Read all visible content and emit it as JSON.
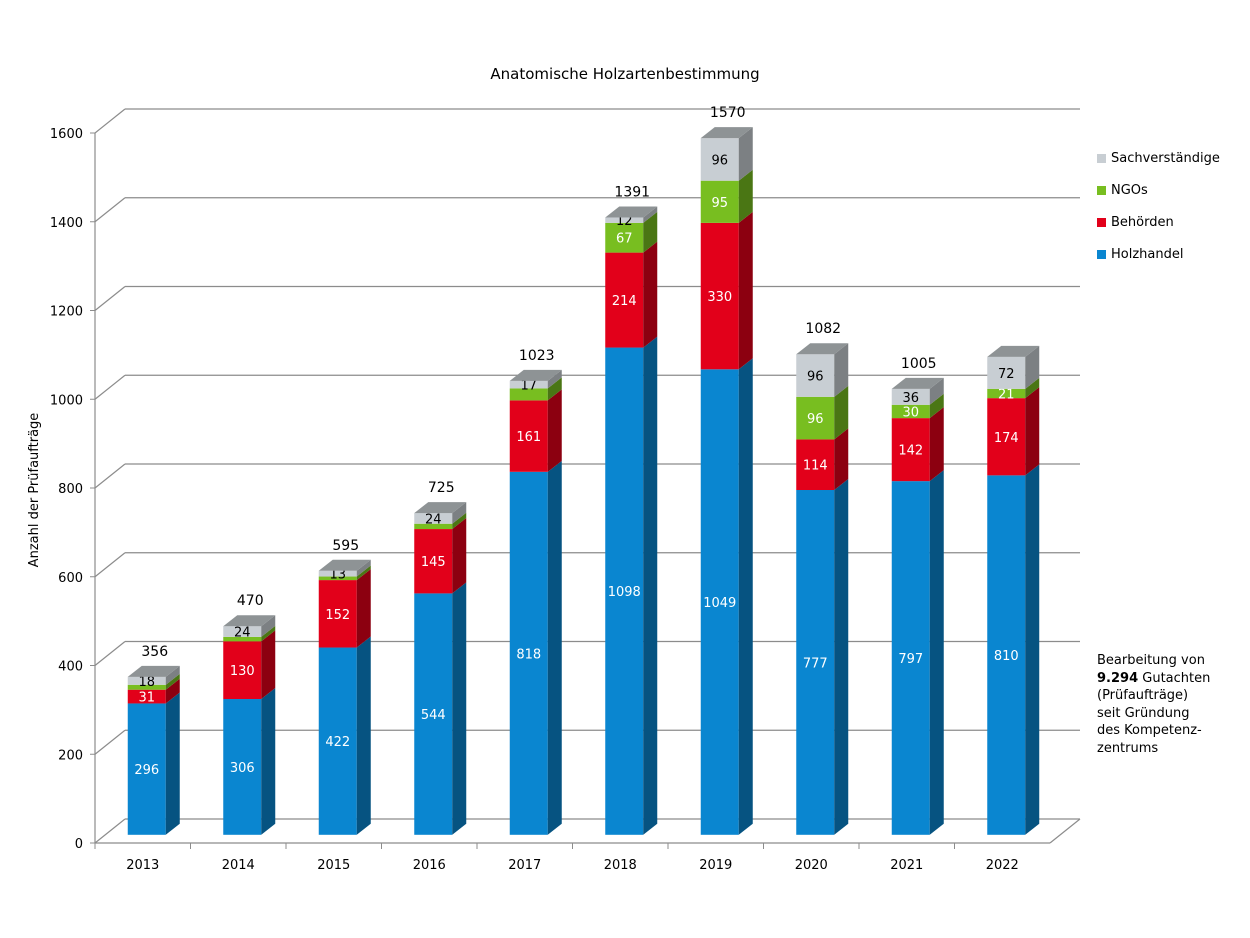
{
  "chart_data": {
    "type": "bar",
    "stacked": true,
    "three_d": true,
    "title": "Anatomische Holzartenbestimmung",
    "xlabel": "",
    "ylabel": "Anzahl der Prüfaufträge",
    "ylim": [
      0,
      1600
    ],
    "yticks": [
      0,
      200,
      400,
      600,
      800,
      1000,
      1200,
      1400,
      1600
    ],
    "grid": true,
    "legend_position": "right",
    "categories": [
      "2013",
      "2014",
      "2015",
      "2016",
      "2017",
      "2018",
      "2019",
      "2020",
      "2021",
      "2022"
    ],
    "series": [
      {
        "name": "Holzhandel",
        "color": "#0a86d0",
        "values": [
          296,
          306,
          422,
          544,
          818,
          1098,
          1049,
          777,
          797,
          810
        ],
        "show_labels": [
          true,
          true,
          true,
          true,
          true,
          true,
          true,
          true,
          true,
          true
        ]
      },
      {
        "name": "Behörden",
        "color": "#e2001a",
        "values": [
          31,
          130,
          152,
          145,
          161,
          214,
          330,
          114,
          142,
          174
        ],
        "show_labels": [
          true,
          true,
          true,
          true,
          true,
          true,
          true,
          true,
          true,
          true
        ]
      },
      {
        "name": "NGOs",
        "color": "#78be20",
        "values": [
          11,
          10,
          8,
          12,
          27,
          67,
          95,
          96,
          30,
          21
        ],
        "show_labels": [
          false,
          false,
          false,
          false,
          false,
          true,
          true,
          true,
          true,
          true
        ]
      },
      {
        "name": "Sachverständige",
        "color": "#c8ced3",
        "values": [
          18,
          24,
          13,
          24,
          17,
          12,
          96,
          96,
          36,
          72
        ],
        "show_labels": [
          true,
          true,
          true,
          true,
          true,
          true,
          true,
          true,
          true,
          true
        ]
      }
    ],
    "totals": [
      "356",
      "470",
      "595",
      "725",
      "1023",
      "1391",
      "1570",
      "1082",
      "1005",
      ""
    ],
    "legend_order": [
      "Sachverständige",
      "NGOs",
      "Behörden",
      "Holzhandel"
    ]
  },
  "note": {
    "line1": "Bearbeitung von",
    "bold": "9.294",
    "line2_rest": " Gutachten",
    "line3": "(Prüfaufträge)",
    "line4": "seit Gründung",
    "line5": "des Kompetenz-",
    "line6": "zentrums"
  }
}
